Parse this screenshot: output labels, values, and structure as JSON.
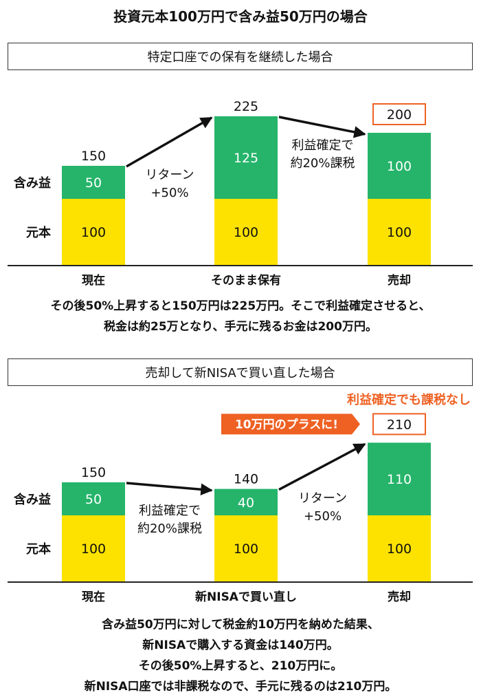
{
  "title": "投資元本100万円で含み益50万円の場合",
  "colors": {
    "principal": "#fde200",
    "gain": "#25b46a",
    "accent": "#ee6123",
    "axis": "#222222",
    "arrow": "#111111"
  },
  "sections": [
    {
      "header": "特定口座での保有を継続した場合",
      "description": [
        "その後50%上昇すると150万円は225万円。そこで利益確定させると、",
        "税金は約25万となり、手元に残るお金は200万円。"
      ]
    },
    {
      "header": "売却して新NISAで買い直した場合",
      "description": [
        "含み益50万円に対して税金約10万円を納めた結果、",
        "新NISAで購入する資金は140万円。",
        "その後50%上昇すると、210万円に。",
        "新NISA口座では非課税なので、手元に残るのは210万円。"
      ]
    }
  ],
  "chart_data": [
    {
      "type": "bar",
      "stacked": true,
      "categories": [
        "現在",
        "そのまま保有",
        "売却"
      ],
      "row_labels": [
        "含み益",
        "元本"
      ],
      "series": [
        {
          "name": "元本",
          "values": [
            100,
            100,
            100
          ]
        },
        {
          "name": "含み益",
          "values": [
            50,
            125,
            100
          ]
        }
      ],
      "totals": [
        "150",
        "225",
        "200"
      ],
      "highlight_total_index": 2,
      "transitions": [
        {
          "from": 0,
          "to": 1,
          "label": [
            "リターン",
            "+50%"
          ]
        },
        {
          "from": 1,
          "to": 2,
          "label": [
            "利益確定で",
            "約20%課税"
          ]
        }
      ]
    },
    {
      "type": "bar",
      "stacked": true,
      "categories": [
        "現在",
        "新NISAで買い直し",
        "売却"
      ],
      "row_labels": [
        "含み益",
        "元本"
      ],
      "series": [
        {
          "name": "元本",
          "values": [
            100,
            100,
            100
          ]
        },
        {
          "name": "含み益",
          "values": [
            50,
            40,
            110
          ]
        }
      ],
      "totals": [
        "150",
        "140",
        "210"
      ],
      "highlight_total_index": 2,
      "transitions": [
        {
          "from": 0,
          "to": 1,
          "label": [
            "利益確定で",
            "約20%課税"
          ]
        },
        {
          "from": 1,
          "to": 2,
          "label": [
            "リターン",
            "+50%"
          ]
        }
      ],
      "callout": "10万円のプラスに!",
      "note": "利益確定でも課税なし"
    }
  ]
}
